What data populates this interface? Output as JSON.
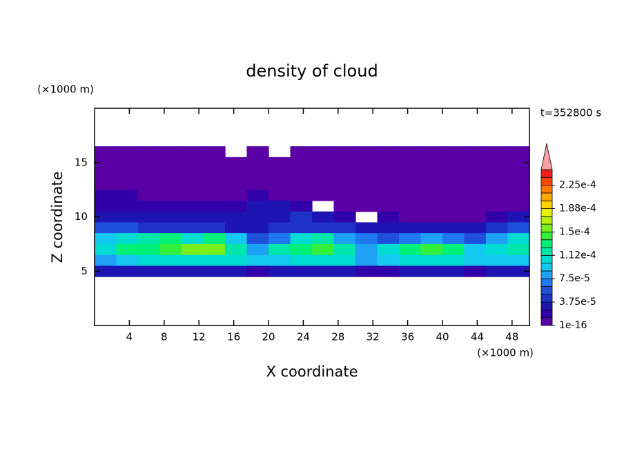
{
  "chart_data": {
    "type": "contour",
    "title": "density of cloud",
    "x_label": "X coordinate",
    "y_label": "Z coordinate",
    "x_unit": "(×1000 m)",
    "y_unit": "(×1000 m)",
    "time_label": "t=352800 s",
    "xlim": [
      0,
      50
    ],
    "ylim": [
      0,
      20
    ],
    "xticks": [
      4,
      8,
      12,
      16,
      20,
      24,
      28,
      32,
      36,
      40,
      44,
      48
    ],
    "yticks": [
      5,
      10,
      15
    ],
    "field": {
      "x": [
        1.25,
        3.75,
        6.25,
        8.75,
        11.25,
        13.75,
        16.25,
        18.75,
        21.25,
        23.75,
        26.25,
        28.75,
        31.25,
        33.75,
        36.25,
        38.75,
        41.25,
        43.75,
        46.25,
        48.75
      ],
      "z": [
        16,
        15,
        14,
        13,
        12,
        11,
        10,
        9,
        8,
        7,
        6,
        5
      ],
      "values": [
        [
          5e-06,
          5e-06,
          5e-06,
          5e-06,
          5e-06,
          5e-06,
          null,
          5e-06,
          null,
          5e-06,
          5e-06,
          5e-06,
          5e-06,
          5e-06,
          5e-06,
          5e-06,
          5e-06,
          5e-06,
          5e-06,
          5e-06
        ],
        [
          5e-06,
          5e-06,
          5e-06,
          5e-06,
          5e-06,
          5e-06,
          5e-06,
          5e-06,
          5e-06,
          5e-06,
          5e-06,
          5e-06,
          5e-06,
          5e-06,
          5e-06,
          5e-06,
          5e-06,
          5e-06,
          5e-06,
          5e-06
        ],
        [
          5e-06,
          5e-06,
          5e-06,
          5e-06,
          5e-06,
          5e-06,
          5e-06,
          5e-06,
          5e-06,
          5e-06,
          5e-06,
          5e-06,
          5e-06,
          5e-06,
          5e-06,
          5e-06,
          5e-06,
          5e-06,
          5e-06,
          5e-06
        ],
        [
          5e-06,
          5e-06,
          5e-06,
          5e-06,
          5e-06,
          5e-06,
          5e-06,
          5e-06,
          5e-06,
          5e-06,
          5e-06,
          5e-06,
          5e-06,
          5e-06,
          5e-06,
          5e-06,
          5e-06,
          5e-06,
          5e-06,
          5e-06
        ],
        [
          1.5e-05,
          1.5e-05,
          5e-06,
          5e-06,
          5e-06,
          5e-06,
          5e-06,
          1.5e-05,
          5e-06,
          5e-06,
          5e-06,
          5e-06,
          5e-06,
          5e-06,
          5e-06,
          5e-06,
          5e-06,
          5e-06,
          5e-06,
          5e-06
        ],
        [
          2e-05,
          2e-05,
          2e-05,
          1.5e-05,
          1.5e-05,
          1.5e-05,
          2e-05,
          3e-05,
          3e-05,
          2e-05,
          null,
          5e-06,
          5e-06,
          5e-06,
          5e-06,
          5e-06,
          5e-06,
          5e-06,
          5e-06,
          5e-06
        ],
        [
          3e-05,
          3e-05,
          2.5e-05,
          2.5e-05,
          3e-05,
          3e-05,
          3e-05,
          3e-05,
          3e-05,
          4e-05,
          3e-05,
          2e-05,
          null,
          1.5e-05,
          5e-06,
          5e-06,
          5e-06,
          5e-06,
          1.5e-05,
          3e-05
        ],
        [
          5e-05,
          5e-05,
          4e-05,
          4e-05,
          4e-05,
          4e-05,
          3e-05,
          3e-05,
          4e-05,
          4e-05,
          4e-05,
          4e-05,
          3e-05,
          3e-05,
          3e-05,
          3e-05,
          3e-05,
          3e-05,
          4e-05,
          6e-05
        ],
        [
          9e-05,
          0.0001,
          0.00012,
          0.00013,
          0.00011,
          0.00013,
          9e-05,
          6e-05,
          7e-05,
          0.00011,
          0.00012,
          8e-05,
          7e-05,
          6e-05,
          7e-05,
          8e-05,
          7e-05,
          5e-05,
          8e-05,
          0.00011
        ],
        [
          0.00011,
          0.00013,
          0.000135,
          0.000145,
          0.00015,
          0.000155,
          0.00012,
          8e-05,
          0.00012,
          0.000135,
          0.000145,
          0.00012,
          8e-05,
          0.0001,
          0.00013,
          0.00014,
          0.00013,
          9e-05,
          0.00011,
          0.00012
        ],
        [
          8e-05,
          9e-05,
          0.0001,
          0.000105,
          0.000105,
          0.000105,
          0.0001,
          9e-05,
          9e-05,
          0.0001,
          0.000105,
          0.0001,
          8e-05,
          9e-05,
          0.0001,
          0.0001,
          0.0001,
          9e-05,
          9e-05,
          9e-05
        ],
        [
          3e-05,
          3e-05,
          3e-05,
          3e-05,
          3e-05,
          3e-05,
          3e-05,
          2e-05,
          2.5e-05,
          3e-05,
          3e-05,
          3e-05,
          2e-05,
          2e-05,
          3e-05,
          3e-05,
          3e-05,
          2e-05,
          2.5e-05,
          3e-05
        ]
      ]
    },
    "colorbar": {
      "levels": [
        1e-16,
        1.25e-05,
        2.5e-05,
        3.75e-05,
        5e-05,
        6.25e-05,
        7.5e-05,
        8.75e-05,
        0.0001,
        0.0001125,
        0.000125,
        0.0001375,
        0.00015,
        0.0001625,
        0.000175,
        0.0001875,
        0.0002,
        0.0002125,
        0.000225,
        0.0002375
      ],
      "colors": [
        "#5a00a5",
        "#3200aa",
        "#1e14b4",
        "#1e32c8",
        "#1e50dc",
        "#1e78f0",
        "#1ea0f5",
        "#14c8f0",
        "#00dcd2",
        "#00e6aa",
        "#00f078",
        "#32f03c",
        "#78f01e",
        "#b4f00a",
        "#e6f000",
        "#ffd200",
        "#ffaa00",
        "#ff7800",
        "#ff4600",
        "#f01e1e"
      ],
      "over_color": "#f4a0a0",
      "ticks": [
        {
          "value": 1e-16,
          "label": "1e-16"
        },
        {
          "value": 3.75e-05,
          "label": "3.75e-5"
        },
        {
          "value": 7.5e-05,
          "label": "7.5e-5"
        },
        {
          "value": 0.0001125,
          "label": "1.12e-4"
        },
        {
          "value": 0.00015,
          "label": "1.5e-4"
        },
        {
          "value": 0.0001875,
          "label": "1.88e-4"
        },
        {
          "value": 0.000225,
          "label": "2.25e-4"
        }
      ]
    }
  }
}
